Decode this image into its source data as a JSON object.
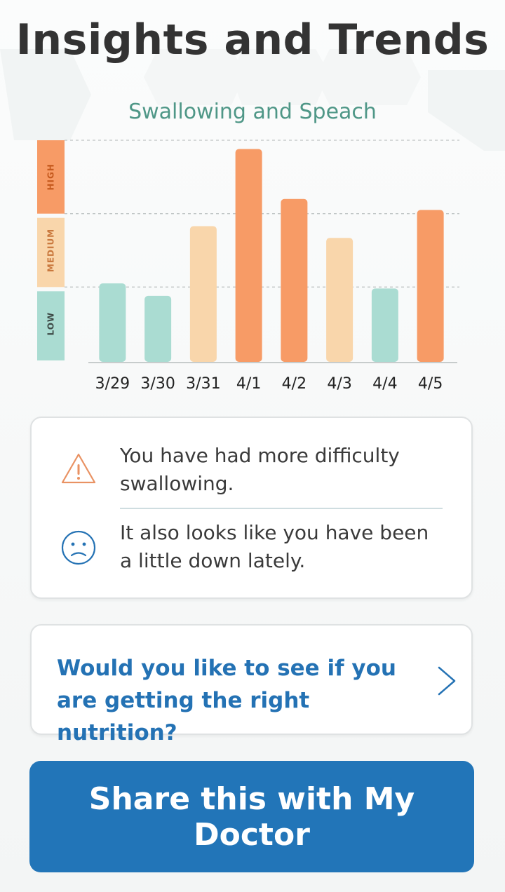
{
  "header": {
    "title": "Insights and Trends"
  },
  "chart_data": {
    "type": "bar",
    "title": "Swallowing and Speach",
    "categories": [
      "3/29",
      "3/30",
      "3/31",
      "4/1",
      "4/2",
      "4/3",
      "4/4",
      "4/5"
    ],
    "values": [
      1.05,
      0.88,
      1.83,
      2.88,
      2.2,
      1.67,
      0.98,
      2.05
    ],
    "levels": [
      "low",
      "low",
      "medium",
      "high",
      "high",
      "medium",
      "low",
      "high"
    ],
    "ylim": [
      0,
      3
    ],
    "y_bands": [
      "LOW",
      "MEDIUM",
      "HIGH"
    ],
    "grid": "dashed at band boundaries",
    "colors": {
      "low": "#aadcd2",
      "medium": "#f9d6ab",
      "high": "#f79b66"
    }
  },
  "insights": {
    "items": [
      {
        "icon": "warning-icon",
        "text": "You have had more difficulty swallowing."
      },
      {
        "icon": "sad-face-icon",
        "text": "It also looks like you have been a little down lately."
      }
    ]
  },
  "nutrition_card": {
    "text": "Would you like to see if you are getting the right nutrition?"
  },
  "share_button": {
    "label": "Share this with My Doctor"
  },
  "colors": {
    "accent": "#2275b8",
    "title": "#333333",
    "chart_title": "#4f9787",
    "warning": "#e99263"
  }
}
